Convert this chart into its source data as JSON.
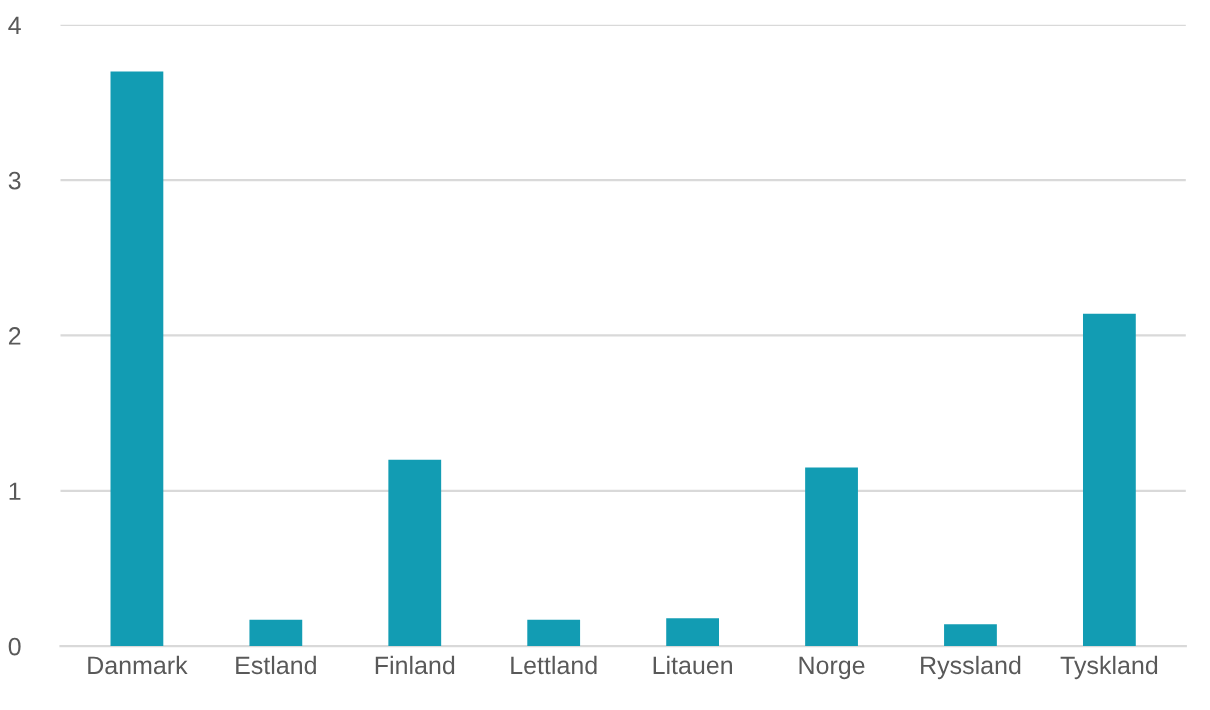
{
  "chart_data": {
    "type": "bar",
    "categories": [
      "Danmark",
      "Estland",
      "Finland",
      "Lettland",
      "Litauen",
      "Norge",
      "Ryssland",
      "Tyskland"
    ],
    "values": [
      3.7,
      0.17,
      1.2,
      0.17,
      0.18,
      1.15,
      0.14,
      2.14
    ],
    "color": "#129cb3",
    "ylim": [
      0,
      4
    ],
    "yticks": [
      0,
      1,
      2,
      3,
      4
    ],
    "grid": "y",
    "legend": false
  }
}
